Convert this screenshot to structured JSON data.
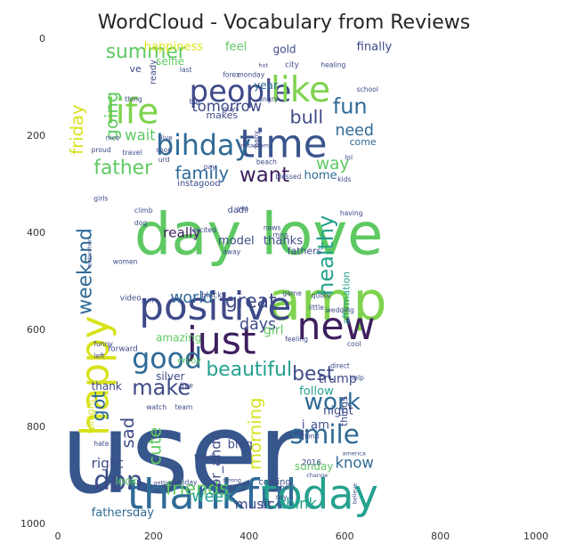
{
  "chart_data": {
    "type": "wordcloud",
    "title": "WordCloud - Vocabulary from Reviews",
    "xlim": [
      0,
      1000
    ],
    "ylim": [
      1000,
      0
    ],
    "x_ticks": [
      "0",
      "200",
      "400",
      "600",
      "800",
      "1000"
    ],
    "y_ticks": [
      "0",
      "200",
      "400",
      "600",
      "800",
      "1000"
    ],
    "grid": false,
    "colors": {
      "dark": "#3e1f5e",
      "blue": "#2f6a96",
      "teal": "#25a18e",
      "green": "#5ec962",
      "lime": "#b5de2b",
      "yellow": "#d7e219"
    },
    "words": [
      {
        "text": "user",
        "x": 5,
        "y": 935,
        "size": 230,
        "color": "#36568c"
      },
      {
        "text": "day",
        "x": 160,
        "y": 445,
        "size": 120,
        "color": "#5ec962"
      },
      {
        "text": "love",
        "x": 425,
        "y": 445,
        "size": 120,
        "color": "#5ec962"
      },
      {
        "text": "happy",
        "x": 105,
        "y": 820,
        "size": 80,
        "color": "#d7e219",
        "rotate": true
      },
      {
        "text": "amp",
        "x": 440,
        "y": 580,
        "size": 110,
        "color": "#7fd34e"
      },
      {
        "text": "positive",
        "x": 170,
        "y": 580,
        "size": 80,
        "color": "#3e4a89"
      },
      {
        "text": "just",
        "x": 270,
        "y": 650,
        "size": 78,
        "color": "#3e1f5e"
      },
      {
        "text": "new",
        "x": 500,
        "y": 620,
        "size": 78,
        "color": "#3e1f5e"
      },
      {
        "text": "thankful",
        "x": 145,
        "y": 970,
        "size": 85,
        "color": "#2f6a96"
      },
      {
        "text": "today",
        "x": 425,
        "y": 970,
        "size": 85,
        "color": "#25a18e"
      },
      {
        "text": "time",
        "x": 380,
        "y": 245,
        "size": 80,
        "color": "#39558c"
      },
      {
        "text": "people",
        "x": 275,
        "y": 130,
        "size": 62,
        "color": "#3e4a89"
      },
      {
        "text": "like",
        "x": 445,
        "y": 130,
        "size": 72,
        "color": "#7fd34e"
      },
      {
        "text": "life",
        "x": 100,
        "y": 175,
        "size": 72,
        "color": "#7fd34e"
      },
      {
        "text": "bihday",
        "x": 205,
        "y": 240,
        "size": 58,
        "color": "#2f6a96"
      },
      {
        "text": "father",
        "x": 75,
        "y": 280,
        "size": 40,
        "color": "#5ec962"
      },
      {
        "text": "family",
        "x": 245,
        "y": 290,
        "size": 36,
        "color": "#2f6a96"
      },
      {
        "text": "want",
        "x": 380,
        "y": 295,
        "size": 42,
        "color": "#3e1f5e"
      },
      {
        "text": "way",
        "x": 540,
        "y": 270,
        "size": 34,
        "color": "#5ec962"
      },
      {
        "text": "fun",
        "x": 575,
        "y": 155,
        "size": 44,
        "color": "#2f6a96"
      },
      {
        "text": "need",
        "x": 580,
        "y": 200,
        "size": 32,
        "color": "#2f6a96"
      },
      {
        "text": "bull",
        "x": 485,
        "y": 175,
        "size": 38,
        "color": "#3e4a89"
      },
      {
        "text": "summer",
        "x": 100,
        "y": 40,
        "size": 40,
        "color": "#5ec962"
      },
      {
        "text": "friday",
        "x": 52,
        "y": 240,
        "size": 36,
        "color": "#d7e219",
        "rotate": true
      },
      {
        "text": "going",
        "x": 125,
        "y": 210,
        "size": 36,
        "color": "#5ec962",
        "rotate": true
      },
      {
        "text": "wait",
        "x": 140,
        "y": 210,
        "size": 30,
        "color": "#5ec962"
      },
      {
        "text": "tomorrow",
        "x": 280,
        "y": 150,
        "size": 30,
        "color": "#3e4a89"
      },
      {
        "text": "weekend",
        "x": 70,
        "y": 570,
        "size": 40,
        "color": "#2f6a96",
        "rotate": true
      },
      {
        "text": "got",
        "x": 98,
        "y": 790,
        "size": 38,
        "color": "#2f6a96",
        "rotate": true
      },
      {
        "text": "good",
        "x": 155,
        "y": 680,
        "size": 58,
        "color": "#2f6a96"
      },
      {
        "text": "make",
        "x": 155,
        "y": 735,
        "size": 44,
        "color": "#3e4a89"
      },
      {
        "text": "healthy",
        "x": 575,
        "y": 530,
        "size": 44,
        "color": "#25a18e",
        "rotate": true
      },
      {
        "text": "great",
        "x": 350,
        "y": 555,
        "size": 40,
        "color": "#3e4a89"
      },
      {
        "text": "days",
        "x": 380,
        "y": 600,
        "size": 32,
        "color": "#3e4a89"
      },
      {
        "text": "world",
        "x": 235,
        "y": 545,
        "size": 32,
        "color": "#2f6a96"
      },
      {
        "text": "beautiful",
        "x": 310,
        "y": 695,
        "size": 40,
        "color": "#25a18e"
      },
      {
        "text": "best",
        "x": 490,
        "y": 705,
        "size": 40,
        "color": "#3e4a89"
      },
      {
        "text": "work",
        "x": 515,
        "y": 765,
        "size": 48,
        "color": "#2f6a96"
      },
      {
        "text": "smile",
        "x": 485,
        "y": 835,
        "size": 54,
        "color": "#2f6a96"
      },
      {
        "text": "don",
        "x": 75,
        "y": 930,
        "size": 54,
        "color": "#3e4a89"
      },
      {
        "text": "friends",
        "x": 225,
        "y": 940,
        "size": 38,
        "color": "#5ec962"
      },
      {
        "text": "week",
        "x": 280,
        "y": 955,
        "size": 32,
        "color": "#25a18e"
      },
      {
        "text": "music",
        "x": 370,
        "y": 970,
        "size": 28,
        "color": "#3e4a89"
      },
      {
        "text": "think",
        "x": 465,
        "y": 970,
        "size": 30,
        "color": "#25a18e"
      },
      {
        "text": "know",
        "x": 580,
        "y": 885,
        "size": 30,
        "color": "#2f6a96"
      },
      {
        "text": "morning",
        "x": 425,
        "y": 890,
        "size": 36,
        "color": "#d7e219",
        "rotate": true
      },
      {
        "text": "sad",
        "x": 158,
        "y": 845,
        "size": 36,
        "color": "#3e4a89",
        "rotate": true
      },
      {
        "text": "cute",
        "x": 215,
        "y": 880,
        "size": 36,
        "color": "#5ec962",
        "rotate": true
      },
      {
        "text": "or_ando",
        "x": 340,
        "y": 925,
        "size": 28,
        "color": "#3e4a89",
        "rotate": true
      },
      {
        "text": "right",
        "x": 70,
        "y": 885,
        "size": 28,
        "color": "#3e4a89"
      },
      {
        "text": "fathersday",
        "x": 70,
        "y": 985,
        "size": 24,
        "color": "#2f6a96"
      },
      {
        "text": "blog",
        "x": 355,
        "y": 845,
        "size": 24,
        "color": "#3e4a89"
      },
      {
        "text": "trump",
        "x": 545,
        "y": 710,
        "size": 26,
        "color": "#3e4a89"
      },
      {
        "text": "follow",
        "x": 505,
        "y": 735,
        "size": 24,
        "color": "#25a18e"
      },
      {
        "text": "night",
        "x": 555,
        "y": 775,
        "size": 24,
        "color": "#3e4a89"
      },
      {
        "text": "really",
        "x": 220,
        "y": 410,
        "size": 28,
        "color": "#3e1f5e"
      },
      {
        "text": "model",
        "x": 335,
        "y": 425,
        "size": 24,
        "color": "#3e4a89"
      },
      {
        "text": "thanks",
        "x": 430,
        "y": 425,
        "size": 24,
        "color": "#3e4a89"
      },
      {
        "text": "girl",
        "x": 430,
        "y": 610,
        "size": 26,
        "color": "#5ec962"
      },
      {
        "text": "happiness",
        "x": 180,
        "y": 25,
        "size": 24,
        "color": "#d7e219"
      },
      {
        "text": "feel",
        "x": 350,
        "y": 25,
        "size": 24,
        "color": "#5ec962"
      },
      {
        "text": "gold",
        "x": 450,
        "y": 30,
        "size": 22,
        "color": "#3e4a89"
      },
      {
        "text": "finally",
        "x": 625,
        "y": 25,
        "size": 24,
        "color": "#3e4a89"
      },
      {
        "text": "home",
        "x": 515,
        "y": 290,
        "size": 24,
        "color": "#2f6a96"
      },
      {
        "text": "come",
        "x": 610,
        "y": 220,
        "size": 20,
        "color": "#2f6a96"
      },
      {
        "text": "year",
        "x": 410,
        "y": 105,
        "size": 22,
        "color": "#2f6a96"
      },
      {
        "text": "selfie",
        "x": 205,
        "y": 55,
        "size": 22,
        "color": "#5ec962"
      },
      {
        "text": "thank",
        "x": 70,
        "y": 725,
        "size": 22,
        "color": "#3e4a89"
      },
      {
        "text": "amazing",
        "x": 205,
        "y": 625,
        "size": 22,
        "color": "#5ec962"
      },
      {
        "text": "silver",
        "x": 205,
        "y": 705,
        "size": 22,
        "color": "#3e4a89"
      },
      {
        "text": "i_am",
        "x": 510,
        "y": 805,
        "size": 24,
        "color": "#3e4a89"
      },
      {
        "text": "sunday",
        "x": 495,
        "y": 890,
        "size": 22,
        "color": "#5ec962"
      },
      {
        "text": "look",
        "x": 120,
        "y": 920,
        "size": 22,
        "color": "#5ec962"
      },
      {
        "text": "tonight",
        "x": 75,
        "y": 815,
        "size": 20,
        "color": "#d7e219",
        "rotate": true
      },
      {
        "text": "affirmation",
        "x": 610,
        "y": 590,
        "size": 20,
        "color": "#25a18e",
        "rotate": true
      },
      {
        "text": "makes",
        "x": 310,
        "y": 165,
        "size": 20,
        "color": "#3e4a89"
      },
      {
        "text": "instagood",
        "x": 250,
        "y": 305,
        "size": 18,
        "color": "#3e4a89"
      },
      {
        "text": "fathers",
        "x": 480,
        "y": 445,
        "size": 20,
        "color": "#3e4a89"
      },
      {
        "text": "dad",
        "x": 355,
        "y": 360,
        "size": 18,
        "color": "#3e4a89"
      },
      {
        "text": "ve",
        "x": 150,
        "y": 70,
        "size": 20,
        "color": "#3e4a89"
      },
      {
        "text": "ready",
        "x": 205,
        "y": 95,
        "size": 18,
        "color": "#3e4a89",
        "rotate": true
      },
      {
        "text": "foodie",
        "x": 285,
        "y": 870,
        "size": 18,
        "color": "#3e4a89"
      },
      {
        "text": "enjoy",
        "x": 250,
        "y": 670,
        "size": 18,
        "color": "#5ec962"
      },
      {
        "text": "coming",
        "x": 420,
        "y": 920,
        "size": 18,
        "color": "#3e4a89"
      },
      {
        "text": "gt",
        "x": 425,
        "y": 965,
        "size": 20,
        "color": "#3e4a89"
      },
      {
        "text": "things",
        "x": 605,
        "y": 800,
        "size": 20,
        "color": "#3e4a89",
        "rotate": true
      },
      {
        "text": "2016",
        "x": 510,
        "y": 880,
        "size": 16,
        "color": "#3e4a89"
      },
      {
        "text": "video",
        "x": 130,
        "y": 540,
        "size": 16,
        "color": "#3e4a89"
      },
      {
        "text": "black",
        "x": 300,
        "y": 535,
        "size": 16,
        "color": "#3e4a89"
      },
      {
        "text": "city",
        "x": 475,
        "y": 60,
        "size": 16,
        "color": "#3e4a89"
      },
      {
        "text": "forward",
        "x": 105,
        "y": 645,
        "size": 16,
        "color": "#3e4a89"
      },
      {
        "text": "funny",
        "x": 75,
        "y": 635,
        "size": 14,
        "color": "#3e4a89"
      },
      {
        "text": "left",
        "x": 75,
        "y": 660,
        "size": 14,
        "color": "#3e4a89"
      },
      {
        "text": "women",
        "x": 115,
        "y": 465,
        "size": 14,
        "color": "#3e4a89"
      },
      {
        "text": "girls",
        "x": 75,
        "y": 335,
        "size": 14,
        "color": "#3e4a89"
      },
      {
        "text": "proud",
        "x": 70,
        "y": 235,
        "size": 14,
        "color": "#3e4a89"
      },
      {
        "text": "travel",
        "x": 135,
        "y": 240,
        "size": 14,
        "color": "#3e4a89"
      },
      {
        "text": "soon",
        "x": 205,
        "y": 235,
        "size": 14,
        "color": "#3e4a89"
      },
      {
        "text": "urd",
        "x": 210,
        "y": 255,
        "size": 14,
        "color": "#3e4a89"
      },
      {
        "text": "nice",
        "x": 100,
        "y": 210,
        "size": 14,
        "color": "#3e4a89"
      },
      {
        "text": "live",
        "x": 215,
        "y": 210,
        "size": 14,
        "color": "#3e4a89"
      },
      {
        "text": "thing",
        "x": 140,
        "y": 130,
        "size": 14,
        "color": "#3e4a89"
      },
      {
        "text": "big",
        "x": 275,
        "y": 135,
        "size": 14,
        "color": "#3e4a89"
      },
      {
        "text": "guys",
        "x": 345,
        "y": 150,
        "size": 14,
        "color": "#3e4a89"
      },
      {
        "text": "angry",
        "x": 420,
        "y": 130,
        "size": 14,
        "color": "#3e4a89"
      },
      {
        "text": "school",
        "x": 625,
        "y": 110,
        "size": 14,
        "color": "#3e4a89"
      },
      {
        "text": "healing",
        "x": 550,
        "y": 60,
        "size": 14,
        "color": "#3e4a89"
      },
      {
        "text": "baby",
        "x": 420,
        "y": 225,
        "size": 14,
        "color": "#3e4a89",
        "rotate": true
      },
      {
        "text": "beach",
        "x": 415,
        "y": 260,
        "size": 14,
        "color": "#3e4a89"
      },
      {
        "text": "lol",
        "x": 600,
        "y": 250,
        "size": 14,
        "color": "#3e4a89"
      },
      {
        "text": "kids",
        "x": 585,
        "y": 295,
        "size": 14,
        "color": "#3e4a89"
      },
      {
        "text": "blessed",
        "x": 455,
        "y": 290,
        "size": 14,
        "color": "#3e4a89"
      },
      {
        "text": "pay",
        "x": 305,
        "y": 270,
        "size": 14,
        "color": "#3e4a89"
      },
      {
        "text": "having",
        "x": 590,
        "y": 365,
        "size": 14,
        "color": "#3e4a89"
      },
      {
        "text": "news",
        "x": 430,
        "y": 395,
        "size": 14,
        "color": "#3e4a89"
      },
      {
        "text": "miss",
        "x": 450,
        "y": 410,
        "size": 14,
        "color": "#3e4a89"
      },
      {
        "text": "yes",
        "x": 375,
        "y": 355,
        "size": 14,
        "color": "#3e4a89"
      },
      {
        "text": "ll",
        "x": 390,
        "y": 360,
        "size": 14,
        "color": "#3e4a89"
      },
      {
        "text": "excited",
        "x": 280,
        "y": 400,
        "size": 14,
        "color": "#3e4a89"
      },
      {
        "text": "away",
        "x": 345,
        "y": 445,
        "size": 14,
        "color": "#3e4a89"
      },
      {
        "text": "climb",
        "x": 160,
        "y": 360,
        "size": 14,
        "color": "#3e4a89"
      },
      {
        "text": "dog",
        "x": 160,
        "y": 385,
        "size": 14,
        "color": "#3e4a89"
      },
      {
        "text": "motivation",
        "x": 70,
        "y": 475,
        "size": 12,
        "color": "#3e4a89",
        "rotate": true
      },
      {
        "text": "sun",
        "x": 175,
        "y": 545,
        "size": 14,
        "color": "#3e4a89"
      },
      {
        "text": "game",
        "x": 470,
        "y": 530,
        "size": 14,
        "color": "#3e4a89"
      },
      {
        "text": "quote",
        "x": 530,
        "y": 535,
        "size": 14,
        "color": "#3e4a89"
      },
      {
        "text": "little",
        "x": 525,
        "y": 560,
        "size": 14,
        "color": "#3e4a89"
      },
      {
        "text": "wedding",
        "x": 560,
        "y": 565,
        "size": 14,
        "color": "#3e4a89"
      },
      {
        "text": "feeling",
        "x": 475,
        "y": 625,
        "size": 14,
        "color": "#3e4a89"
      },
      {
        "text": "cool",
        "x": 605,
        "y": 635,
        "size": 14,
        "color": "#3e4a89"
      },
      {
        "text": "direct",
        "x": 570,
        "y": 680,
        "size": 14,
        "color": "#3e4a89"
      },
      {
        "text": "help",
        "x": 610,
        "y": 705,
        "size": 14,
        "color": "#3e4a89"
      },
      {
        "text": "watch",
        "x": 185,
        "y": 765,
        "size": 14,
        "color": "#3e4a89"
      },
      {
        "text": "team",
        "x": 245,
        "y": 765,
        "size": 14,
        "color": "#3e4a89"
      },
      {
        "text": "free",
        "x": 255,
        "y": 720,
        "size": 14,
        "color": "#3e4a89"
      },
      {
        "text": "hate",
        "x": 75,
        "y": 840,
        "size": 14,
        "color": "#3e4a89"
      },
      {
        "text": "america",
        "x": 595,
        "y": 860,
        "size": 12,
        "color": "#3e4a89"
      },
      {
        "text": "friend",
        "x": 505,
        "y": 825,
        "size": 14,
        "color": "#3e4a89"
      },
      {
        "text": "strong",
        "x": 345,
        "y": 915,
        "size": 12,
        "color": "#3e4a89"
      },
      {
        "text": "say",
        "x": 455,
        "y": 950,
        "size": 14,
        "color": "#3e4a89"
      },
      {
        "text": "heal",
        "x": 465,
        "y": 930,
        "size": 14,
        "color": "#3e4a89"
      },
      {
        "text": "change",
        "x": 520,
        "y": 905,
        "size": 12,
        "color": "#3e4a89"
      },
      {
        "text": "believe",
        "x": 625,
        "y": 960,
        "size": 12,
        "color": "#3e4a89",
        "rotate": true
      },
      {
        "text": "holiday",
        "x": 240,
        "y": 920,
        "size": 14,
        "color": "#3e4a89"
      },
      {
        "text": "getting",
        "x": 200,
        "y": 920,
        "size": 12,
        "color": "#3e4a89"
      },
      {
        "text": "forex",
        "x": 345,
        "y": 80,
        "size": 14,
        "color": "#3e4a89"
      },
      {
        "text": "monday",
        "x": 375,
        "y": 80,
        "size": 14,
        "color": "#3e4a89"
      },
      {
        "text": "last",
        "x": 255,
        "y": 70,
        "size": 14,
        "color": "#3e4a89"
      },
      {
        "text": "hot",
        "x": 420,
        "y": 60,
        "size": 12,
        "color": "#3e4a89"
      },
      {
        "text": "instagram",
        "x": 380,
        "y": 225,
        "size": 12,
        "color": "#3e4a89"
      }
    ]
  }
}
